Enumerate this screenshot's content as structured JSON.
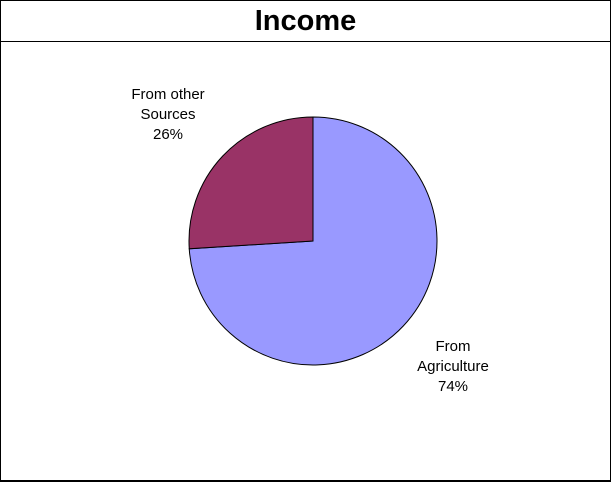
{
  "chart_data": {
    "type": "pie",
    "title": "Income",
    "slices": [
      {
        "label": [
          "From",
          "Agriculture"
        ],
        "value": 74,
        "value_text": "74%",
        "color": "#9999FF"
      },
      {
        "label": [
          "From other",
          "Sources"
        ],
        "value": 26,
        "value_text": "26%",
        "color": "#993366"
      }
    ],
    "start_angle": "12 o'clock",
    "direction": "clockwise"
  }
}
